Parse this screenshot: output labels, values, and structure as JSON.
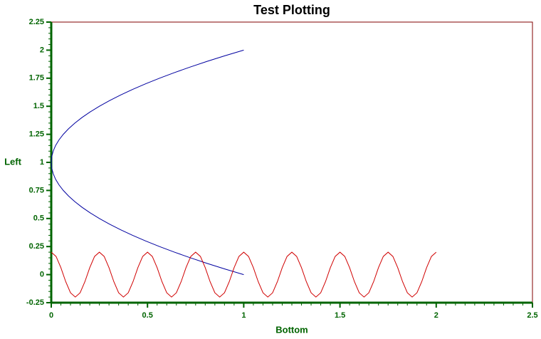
{
  "chart_data": {
    "type": "line",
    "title": "Test Plotting",
    "x_label": "Bottom",
    "y_label": "Left",
    "xlim": [
      0,
      2.5
    ],
    "xticks": [
      0,
      0.5,
      1,
      1.5,
      2,
      2.5
    ],
    "ylim": [
      -0.25,
      2.25
    ],
    "yticks": [
      2.25,
      2,
      1.75,
      1.5,
      1.25,
      1,
      0.75,
      0.5,
      0.25,
      0,
      -0.25
    ],
    "series": [
      {
        "color": "#0000a0",
        "x": [
          1,
          0.9025,
          0.81,
          0.7225,
          0.64,
          0.5625,
          0.49,
          0.4225,
          0.36,
          0.3025,
          0.25,
          0.2025,
          0.16,
          0.1225,
          0.09,
          0.0625,
          0.04,
          0.0225,
          0.01,
          0.0025,
          0,
          0.0025,
          0.01,
          0.0225,
          0.04,
          0.0625,
          0.09,
          0.1225,
          0.16,
          0.2025,
          0.25,
          0.3025,
          0.36,
          0.4225,
          0.49,
          0.5625,
          0.64,
          0.7225,
          0.81,
          0.9025,
          1
        ],
        "values": [
          0,
          0.05,
          0.1,
          0.15,
          0.2,
          0.25,
          0.3,
          0.35,
          0.4,
          0.45,
          0.5,
          0.55,
          0.6,
          0.65,
          0.7,
          0.75,
          0.8,
          0.85,
          0.9,
          0.95,
          1,
          1.05,
          1.1,
          1.15,
          1.2,
          1.25,
          1.3,
          1.35,
          1.4,
          1.45,
          1.5,
          1.55,
          1.6,
          1.65,
          1.7,
          1.75,
          1.8,
          1.85,
          1.9,
          1.95,
          2
        ]
      },
      {
        "color": "#d00000",
        "x": [
          0,
          0.025,
          0.05,
          0.075,
          0.1,
          0.125,
          0.15,
          0.175,
          0.2,
          0.225,
          0.25,
          0.275,
          0.3,
          0.325,
          0.35,
          0.375,
          0.4,
          0.425,
          0.45,
          0.475,
          0.5,
          0.525,
          0.55,
          0.575,
          0.6,
          0.625,
          0.65,
          0.675,
          0.7,
          0.725,
          0.75,
          0.775,
          0.8,
          0.825,
          0.85,
          0.875,
          0.9,
          0.925,
          0.95,
          0.975,
          1,
          1.025,
          1.05,
          1.075,
          1.1,
          1.125,
          1.15,
          1.175,
          1.2,
          1.225,
          1.25,
          1.275,
          1.3,
          1.325,
          1.35,
          1.375,
          1.4,
          1.425,
          1.45,
          1.475,
          1.5,
          1.525,
          1.55,
          1.575,
          1.6,
          1.625,
          1.65,
          1.675,
          1.7,
          1.725,
          1.75,
          1.775,
          1.8,
          1.825,
          1.85,
          1.875,
          1.9,
          1.925,
          1.95,
          1.975,
          2
        ],
        "values": [
          0.2,
          0.162,
          0.062,
          -0.062,
          -0.162,
          -0.2,
          -0.162,
          -0.062,
          0.062,
          0.162,
          0.2,
          0.162,
          0.062,
          -0.062,
          -0.162,
          -0.2,
          -0.162,
          -0.062,
          0.062,
          0.162,
          0.2,
          0.162,
          0.062,
          -0.062,
          -0.162,
          -0.2,
          -0.162,
          -0.062,
          0.062,
          0.162,
          0.2,
          0.162,
          0.062,
          -0.062,
          -0.162,
          -0.2,
          -0.162,
          -0.062,
          0.062,
          0.162,
          0.2,
          0.162,
          0.062,
          -0.062,
          -0.162,
          -0.2,
          -0.162,
          -0.062,
          0.062,
          0.162,
          0.2,
          0.162,
          0.062,
          -0.062,
          -0.162,
          -0.2,
          -0.162,
          -0.062,
          0.062,
          0.162,
          0.2,
          0.162,
          0.062,
          -0.062,
          -0.162,
          -0.2,
          -0.162,
          -0.062,
          0.062,
          0.162,
          0.2,
          0.162,
          0.062,
          -0.062,
          -0.162,
          -0.2,
          -0.162,
          -0.062,
          0.062,
          0.162,
          0.2
        ]
      }
    ]
  }
}
